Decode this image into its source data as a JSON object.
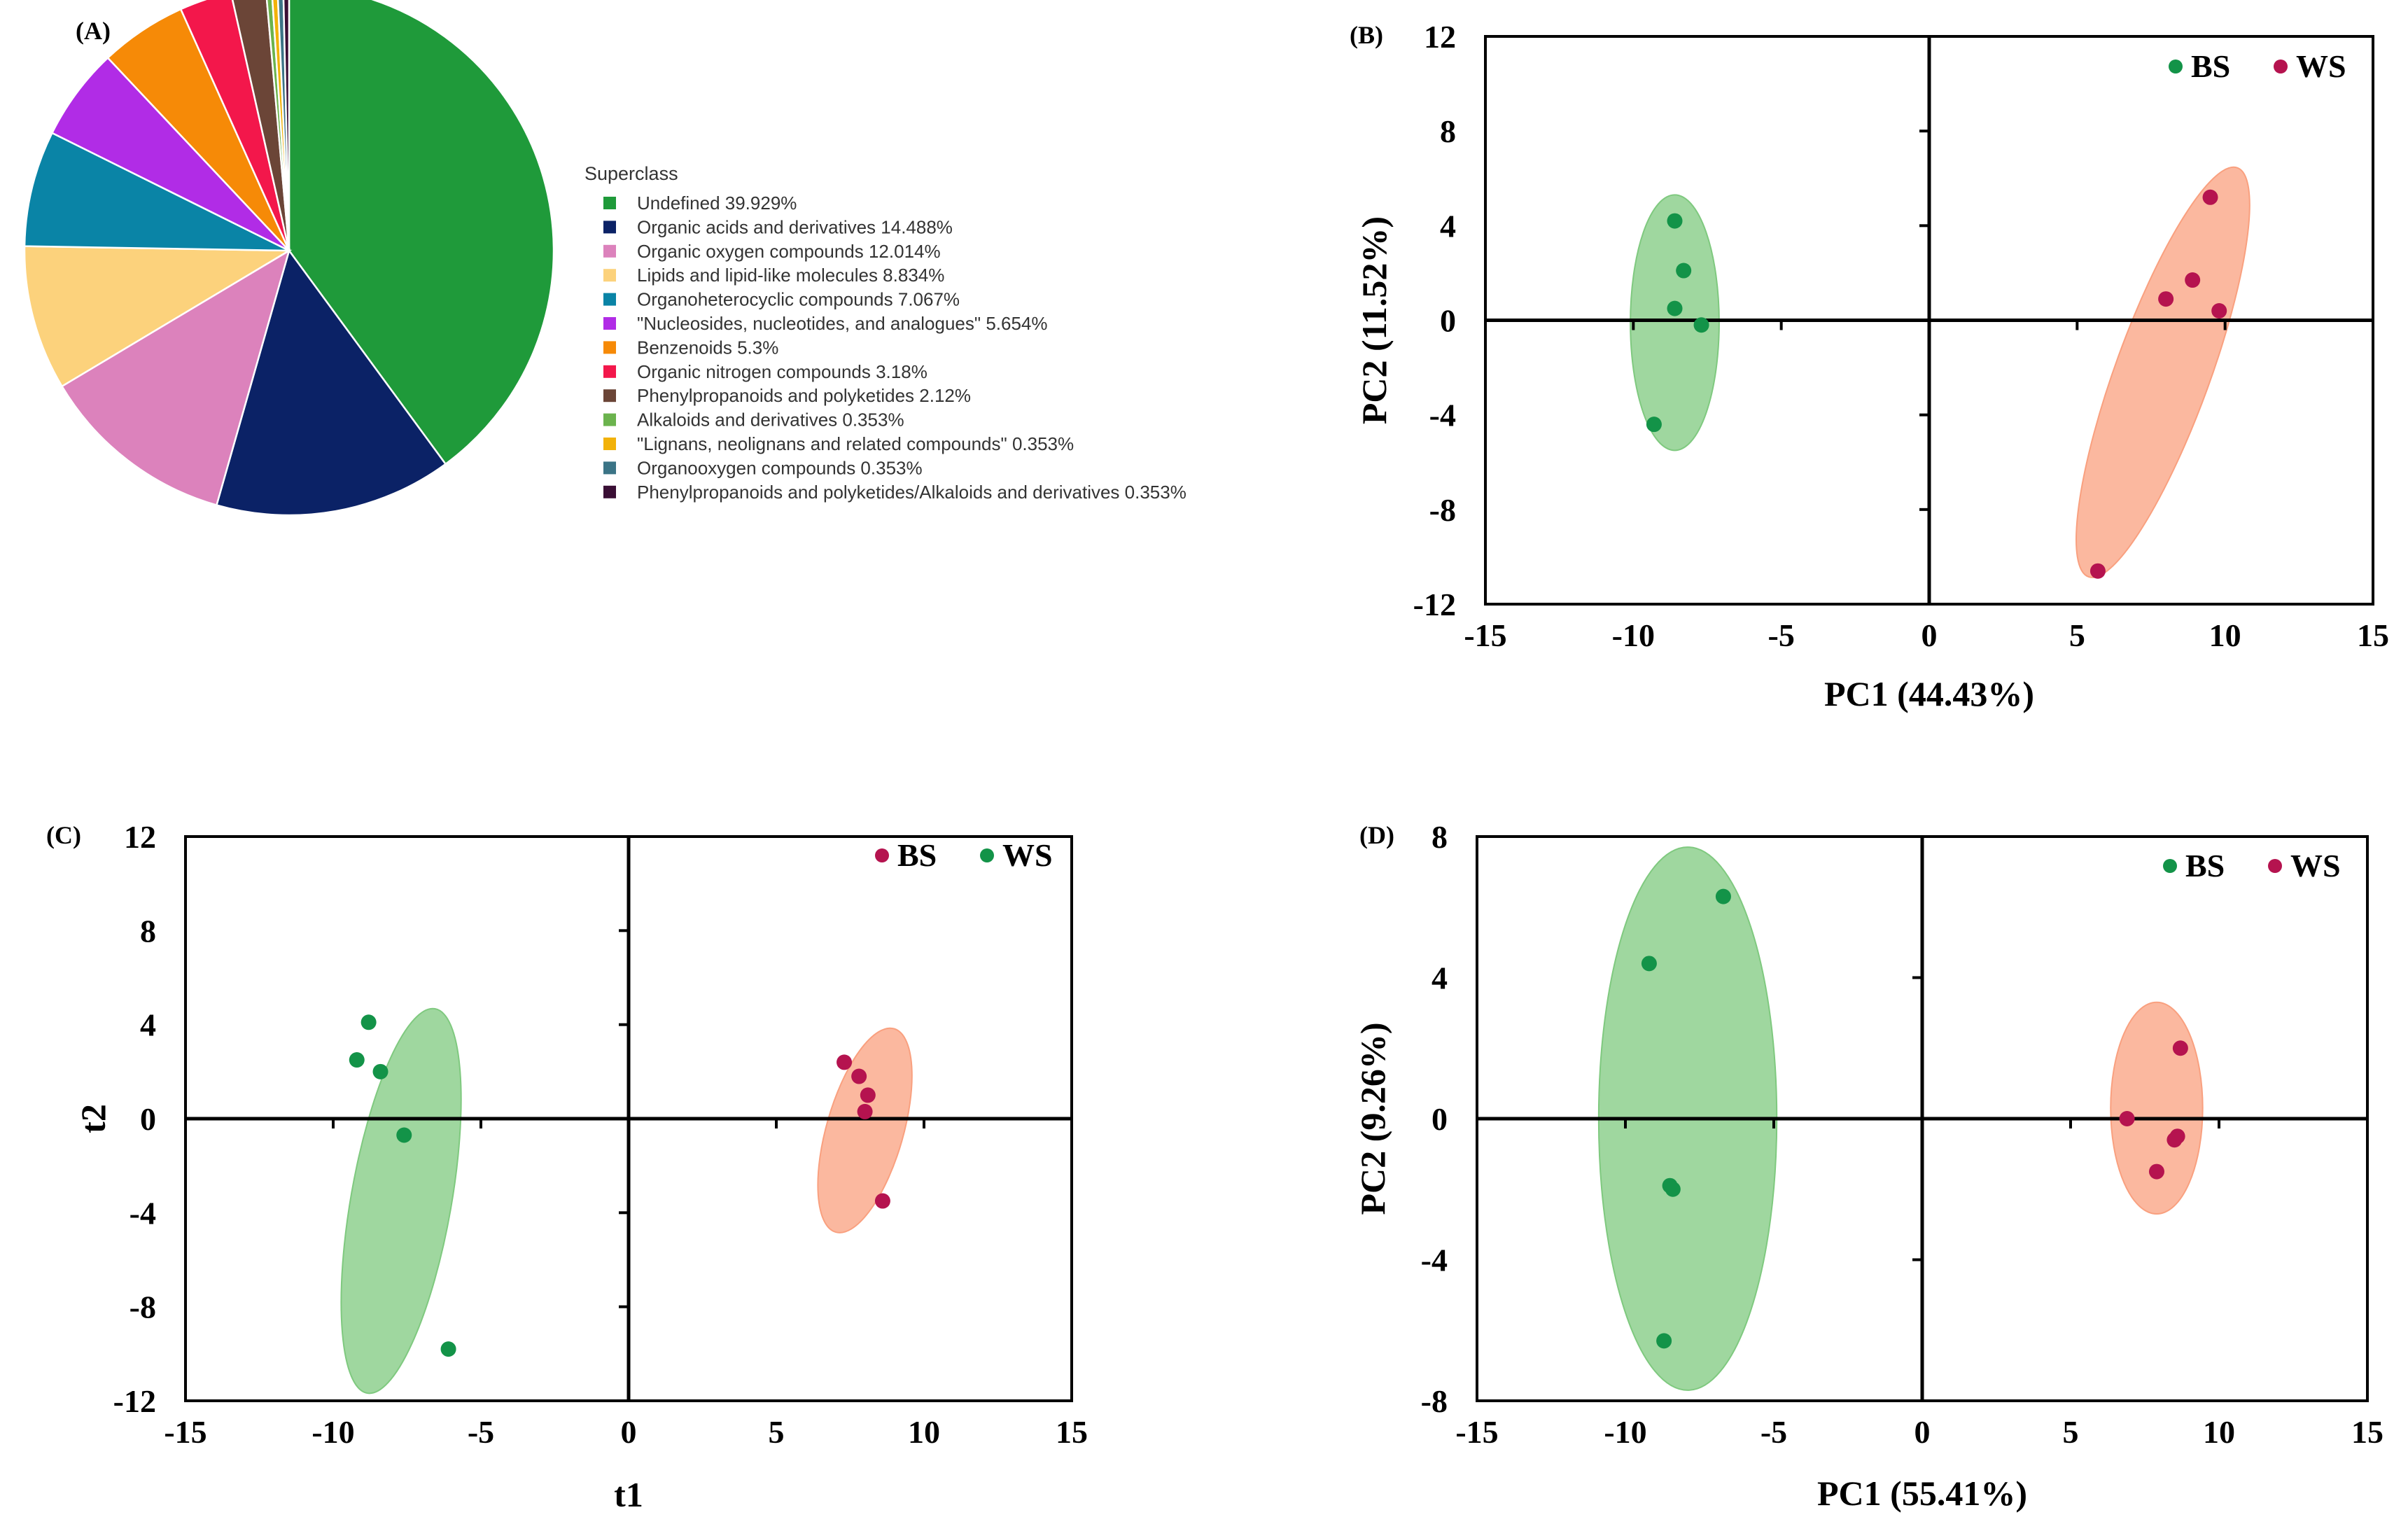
{
  "chart_data": [
    {
      "type": "pie",
      "panel": "(A)",
      "legend_title": "Superclass",
      "slices": [
        {
          "label": "Undefined 39.929%",
          "value": 39.929,
          "color": "#1f9a3a"
        },
        {
          "label": "Organic acids and derivatives 14.488%",
          "value": 14.488,
          "color": "#0b2266"
        },
        {
          "label": "Organic oxygen compounds 12.014%",
          "value": 12.014,
          "color": "#dc82bc"
        },
        {
          "label": "Lipids and lipid-like molecules 8.834%",
          "value": 8.834,
          "color": "#fcd27c"
        },
        {
          "label": "Organoheterocyclic compounds 7.067%",
          "value": 7.067,
          "color": "#0a84a6"
        },
        {
          "label": "\"Nucleosides, nucleotides, and analogues\" 5.654%",
          "value": 5.654,
          "color": "#b12ce6"
        },
        {
          "label": "Benzenoids 5.3%",
          "value": 5.3,
          "color": "#f68a07"
        },
        {
          "label": "Organic nitrogen compounds 3.18%",
          "value": 3.18,
          "color": "#f3174b"
        },
        {
          "label": "Phenylpropanoids and polyketides 2.12%",
          "value": 2.12,
          "color": "#6b4537"
        },
        {
          "label": "Alkaloids and derivatives 0.353%",
          "value": 0.353,
          "color": "#6bb34d"
        },
        {
          "label": "\"Lignans, neolignans and related compounds\" 0.353%",
          "value": 0.353,
          "color": "#f2b20a"
        },
        {
          "label": "Organooxygen compounds 0.353%",
          "value": 0.353,
          "color": "#3b7486"
        },
        {
          "label": "Phenylpropanoids and polyketides/Alkaloids and derivatives 0.353%",
          "value": 0.353,
          "color": "#3a0f35"
        }
      ]
    },
    {
      "type": "scatter",
      "panel": "(B)",
      "xlabel": "PC1 (44.43%)",
      "ylabel": "PC2 (11.52%)",
      "xlim": [
        -15,
        15
      ],
      "ylim": [
        -12,
        12
      ],
      "xticks": [
        -15,
        -10,
        -5,
        0,
        5,
        10,
        15
      ],
      "yticks": [
        12,
        8,
        4,
        0,
        -4,
        -8,
        -12
      ],
      "series": [
        {
          "name": "BS",
          "color": "#139348",
          "fill": "#7fc97f",
          "points": [
            [
              -8.6,
              4.2
            ],
            [
              -8.3,
              2.1
            ],
            [
              -8.6,
              0.5
            ],
            [
              -7.7,
              -0.2
            ],
            [
              -9.3,
              -4.4
            ]
          ],
          "ellipse": {
            "cx": -8.6,
            "cy": -0.1,
            "rx": 1.5,
            "ry": 5.4,
            "angle": 0
          }
        },
        {
          "name": "WS",
          "color": "#b5134f",
          "fill": "#f9a07f",
          "points": [
            [
              9.5,
              5.2
            ],
            [
              8.9,
              1.7
            ],
            [
              8.0,
              0.9
            ],
            [
              9.8,
              0.4
            ],
            [
              5.7,
              -10.6
            ]
          ],
          "ellipse": {
            "cx": 7.9,
            "cy": -2.2,
            "rx": 1.6,
            "ry": 9.2,
            "angle": 20
          }
        }
      ]
    },
    {
      "type": "scatter",
      "panel": "(C)",
      "xlabel": "t1",
      "ylabel": "t2",
      "xlim": [
        -15,
        15
      ],
      "ylim": [
        -12,
        12
      ],
      "xticks": [
        -15,
        -10,
        -5,
        0,
        5,
        10,
        15
      ],
      "yticks": [
        12,
        8,
        4,
        0,
        -4,
        -8,
        -12
      ],
      "series": [
        {
          "name": "BS",
          "color": "#b5134f",
          "fill": "#f9a07f",
          "points": [
            [
              7.3,
              2.4
            ],
            [
              7.8,
              1.8
            ],
            [
              8.1,
              1.0
            ],
            [
              8.0,
              0.3
            ],
            [
              8.6,
              -3.5
            ]
          ],
          "ellipse": {
            "cx": 8.0,
            "cy": -0.5,
            "rx": 1.3,
            "ry": 4.5,
            "angle": 16
          }
        },
        {
          "name": "WS",
          "color": "#139348",
          "fill": "#7fc97f",
          "points": [
            [
              -8.8,
              4.1
            ],
            [
              -9.2,
              2.5
            ],
            [
              -8.4,
              2.0
            ],
            [
              -7.6,
              -0.7
            ],
            [
              -6.1,
              -9.8
            ]
          ],
          "ellipse": {
            "cx": -7.7,
            "cy": -3.5,
            "rx": 1.7,
            "ry": 8.3,
            "angle": 10
          }
        }
      ]
    },
    {
      "type": "scatter",
      "panel": "(D)",
      "xlabel": "PC1 (55.41%)",
      "ylabel": "PC2 (9.26%)",
      "xlim": [
        -15,
        15
      ],
      "ylim": [
        -8,
        8
      ],
      "xticks": [
        -15,
        -10,
        -5,
        0,
        5,
        10,
        15
      ],
      "yticks": [
        8,
        4,
        0,
        -4,
        -8
      ],
      "series": [
        {
          "name": "BS",
          "color": "#139348",
          "fill": "#7fc97f",
          "points": [
            [
              -6.7,
              6.3
            ],
            [
              -9.2,
              4.4
            ],
            [
              -8.5,
              -1.9
            ],
            [
              -8.4,
              -2.0
            ],
            [
              -8.7,
              -6.3
            ]
          ],
          "ellipse": {
            "cx": -7.9,
            "cy": 0,
            "rx": 3.0,
            "ry": 7.7,
            "angle": 0
          }
        },
        {
          "name": "WS",
          "color": "#b5134f",
          "fill": "#f9a07f",
          "points": [
            [
              8.7,
              2.0
            ],
            [
              6.9,
              0.0
            ],
            [
              8.6,
              -0.5
            ],
            [
              8.5,
              -0.6
            ],
            [
              7.9,
              -1.5
            ]
          ],
          "ellipse": {
            "cx": 7.9,
            "cy": 0.3,
            "rx": 1.55,
            "ry": 3.0,
            "angle": 0
          }
        }
      ]
    }
  ]
}
